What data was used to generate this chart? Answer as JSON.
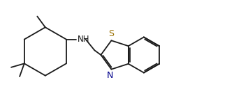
{
  "bg_color": "#ffffff",
  "line_color": "#1a1a1a",
  "S_color": "#9a7000",
  "N_color": "#00008b",
  "NH_color": "#1a1a1a",
  "lw": 1.3,
  "fs_label": 8.5,
  "xlim": [
    0.0,
    10.5
  ],
  "ylim": [
    0.0,
    5.0
  ]
}
